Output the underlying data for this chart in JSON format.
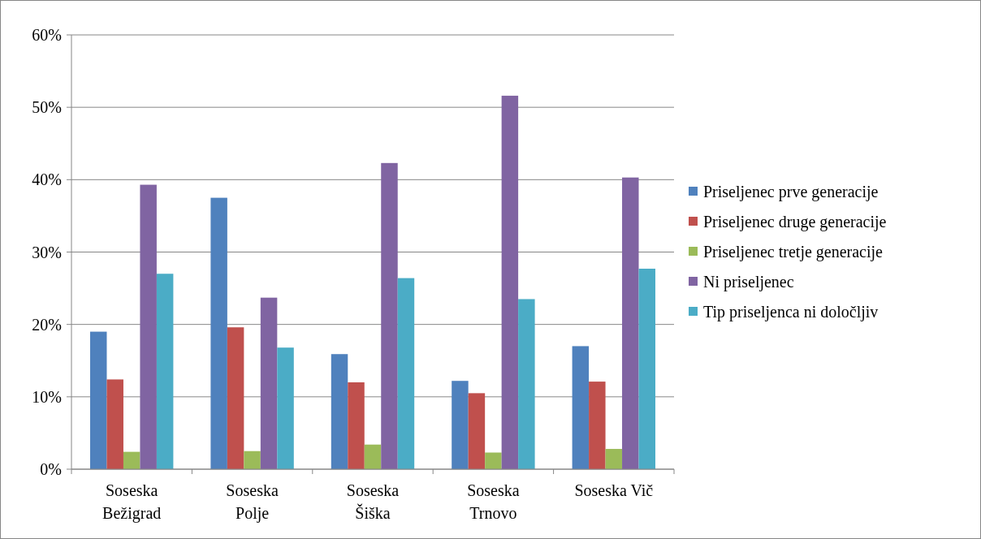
{
  "chart_data": {
    "type": "bar",
    "categories": [
      "Soseska Bežigrad",
      "Soseska Polje",
      "Soseska Šiška",
      "Soseska Trnovo",
      "Soseska Vič"
    ],
    "series": [
      {
        "name": "Priseljenec prve generacije",
        "color": "#4f81bd",
        "values": [
          19.0,
          37.5,
          15.9,
          12.2,
          17.0
        ]
      },
      {
        "name": "Priseljenec druge generacije",
        "color": "#c0504d",
        "values": [
          12.4,
          19.6,
          12.0,
          10.5,
          12.1
        ]
      },
      {
        "name": "Priseljenec tretje generacije",
        "color": "#9bbb59",
        "values": [
          2.4,
          2.5,
          3.4,
          2.3,
          2.8
        ]
      },
      {
        "name": "Ni priseljenec",
        "color": "#8064a2",
        "values": [
          39.3,
          23.7,
          42.3,
          51.6,
          40.3
        ]
      },
      {
        "name": "Tip priseljenca ni določljiv",
        "color": "#4bacc6",
        "values": [
          27.0,
          16.8,
          26.4,
          23.5,
          27.7
        ]
      }
    ],
    "ylim": [
      0,
      60
    ],
    "yticks": [
      {
        "value": 0,
        "label": "0%"
      },
      {
        "value": 10,
        "label": "10%"
      },
      {
        "value": 20,
        "label": "20%"
      },
      {
        "value": 30,
        "label": "30%"
      },
      {
        "value": 40,
        "label": "40%"
      },
      {
        "value": 50,
        "label": "50%"
      },
      {
        "value": 60,
        "label": "60%"
      }
    ],
    "grid": "y",
    "legend": "right"
  }
}
